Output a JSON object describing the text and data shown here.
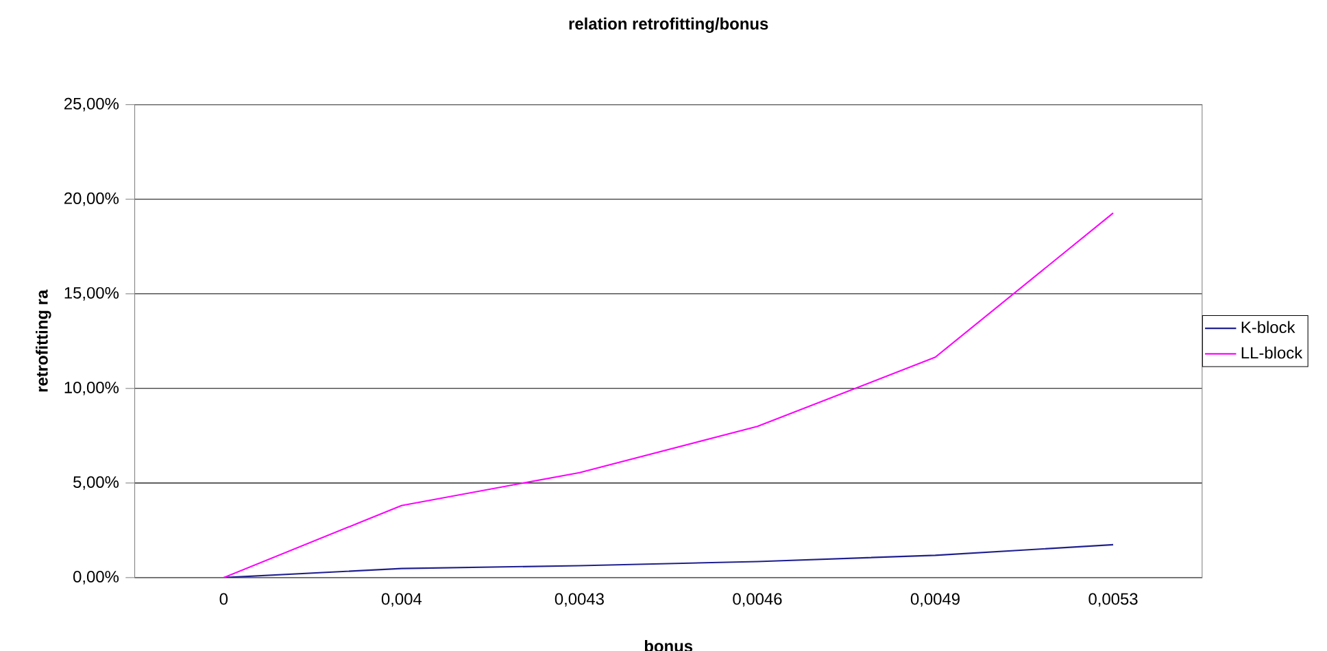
{
  "chart_data": {
    "type": "line",
    "title": "relation retrofitting/bonus",
    "xlabel": "bonus",
    "ylabel": "retrofitting ra",
    "categories": [
      "0",
      "0,004",
      "0,0043",
      "0,0046",
      "0,0049",
      "0,0053"
    ],
    "series": [
      {
        "name": "K-block",
        "color": "#1f1f8f",
        "values": [
          0,
          0.48,
          0.63,
          0.85,
          1.18,
          1.74
        ]
      },
      {
        "name": "LL-block",
        "color": "#ff00ff",
        "values": [
          0,
          3.81,
          5.55,
          7.99,
          11.65,
          19.27
        ]
      }
    ],
    "ylim": [
      0,
      25
    ],
    "yticks": [
      {
        "value": 0,
        "label": "0,00%"
      },
      {
        "value": 5,
        "label": "5,00%"
      },
      {
        "value": 10,
        "label": "10,00%"
      },
      {
        "value": 15,
        "label": "15,00%"
      },
      {
        "value": 20,
        "label": "20,00%"
      },
      {
        "value": 25,
        "label": "25,00%"
      }
    ],
    "grid": "y",
    "legend": "right",
    "marker": "none",
    "line_style": "solid"
  }
}
